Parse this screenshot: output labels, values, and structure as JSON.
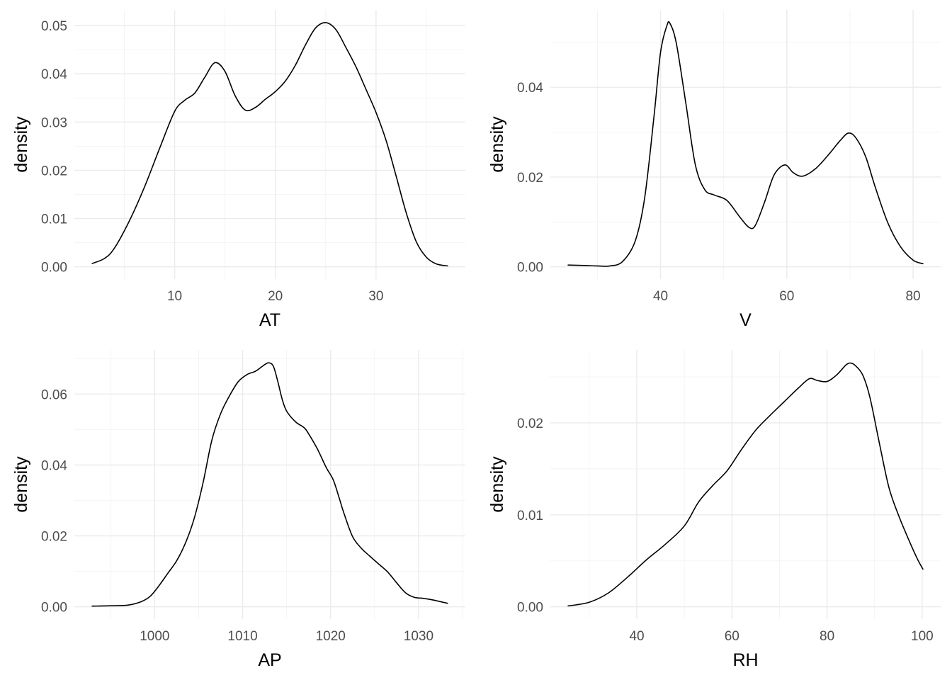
{
  "chart_data": [
    {
      "type": "line",
      "subtype": "density",
      "title": "",
      "xlabel": "AT",
      "ylabel": "density",
      "xlim": [
        1.81,
        37.11
      ],
      "ylim": [
        0,
        0.0507
      ],
      "xticks": [
        10,
        20,
        30
      ],
      "xtick_labels": [
        "10",
        "20",
        "30"
      ],
      "yticks": [
        0,
        0.01,
        0.02,
        0.03,
        0.04,
        0.05
      ],
      "ytick_labels": [
        "0.00",
        "0.01",
        "0.02",
        "0.03",
        "0.04",
        "0.05"
      ],
      "grid": true,
      "series": [
        {
          "x": [
            1.81,
            3.0,
            4.0,
            5.5,
            7.0,
            8.5,
            10.0,
            11.0,
            12.0,
            13.0,
            14.0,
            15.0,
            16.0,
            17.0,
            18.0,
            19.0,
            20.0,
            21.0,
            22.0,
            23.0,
            24.0,
            25.0,
            26.0,
            27.0,
            28.0,
            29.0,
            30.0,
            31.0,
            32.0,
            33.0,
            34.0,
            35.0,
            36.0,
            37.11
          ],
          "y": [
            0.0007,
            0.0017,
            0.0038,
            0.0095,
            0.0165,
            0.0245,
            0.0322,
            0.0345,
            0.036,
            0.0393,
            0.0423,
            0.0405,
            0.0355,
            0.0325,
            0.033,
            0.0347,
            0.0363,
            0.0385,
            0.0418,
            0.046,
            0.0495,
            0.0506,
            0.0492,
            0.0455,
            0.0415,
            0.0368,
            0.032,
            0.0262,
            0.0188,
            0.0112,
            0.0052,
            0.002,
            0.0006,
            0.0002
          ]
        }
      ]
    },
    {
      "type": "line",
      "subtype": "density",
      "title": "",
      "xlabel": "V",
      "ylabel": "density",
      "xlim": [
        25.36,
        81.56
      ],
      "ylim": [
        0,
        0.0545
      ],
      "xticks": [
        40,
        60,
        80
      ],
      "xtick_labels": [
        "40",
        "60",
        "80"
      ],
      "yticks": [
        0,
        0.02,
        0.04
      ],
      "ytick_labels": [
        "0.00",
        "0.02",
        "0.04"
      ],
      "grid": true,
      "series": [
        {
          "x": [
            25.36,
            28.0,
            30.0,
            32.0,
            34.0,
            36.0,
            37.5,
            39.0,
            40.0,
            41.0,
            41.5,
            42.5,
            44.0,
            45.5,
            47.0,
            48.5,
            50.5,
            52.5,
            54.0,
            55.0,
            56.5,
            58.0,
            59.7,
            61.0,
            62.5,
            64.5,
            66.5,
            68.5,
            69.8,
            71.0,
            72.5,
            74.0,
            76.0,
            78.0,
            80.0,
            81.56
          ],
          "y": [
            0.0004,
            0.0003,
            0.0002,
            0.0002,
            0.0012,
            0.0058,
            0.0155,
            0.034,
            0.0478,
            0.0537,
            0.0542,
            0.0498,
            0.0365,
            0.0228,
            0.0172,
            0.016,
            0.0148,
            0.0112,
            0.0088,
            0.0092,
            0.0145,
            0.0205,
            0.0227,
            0.021,
            0.0202,
            0.0218,
            0.0248,
            0.0282,
            0.0298,
            0.0286,
            0.0245,
            0.0178,
            0.0098,
            0.0045,
            0.0015,
            0.0007
          ]
        }
      ]
    },
    {
      "type": "line",
      "subtype": "density",
      "title": "",
      "xlabel": "AP",
      "ylabel": "density",
      "xlim": [
        992.89,
        1033.3
      ],
      "ylim": [
        0,
        0.069
      ],
      "xticks": [
        1000,
        1010,
        1020,
        1030
      ],
      "xtick_labels": [
        "1000",
        "1010",
        "1020",
        "1030"
      ],
      "yticks": [
        0,
        0.02,
        0.04,
        0.06
      ],
      "ytick_labels": [
        "0.00",
        "0.02",
        "0.04",
        "0.06"
      ],
      "grid": true,
      "series": [
        {
          "x": [
            992.89,
            995.0,
            997.0,
            998.5,
            999.5,
            1000.5,
            1001.5,
            1002.5,
            1003.5,
            1004.5,
            1005.5,
            1006.5,
            1007.5,
            1008.5,
            1009.5,
            1010.5,
            1011.5,
            1012.5,
            1013.0,
            1013.5,
            1014.0,
            1014.5,
            1015.0,
            1016.0,
            1017.0,
            1017.5,
            1018.5,
            1019.5,
            1020.3,
            1021.0,
            1021.5,
            1022.5,
            1023.5,
            1024.5,
            1025.5,
            1026.5,
            1027.5,
            1028.5,
            1029.5,
            1030.5,
            1031.5,
            1033.3
          ],
          "y": [
            0.0002,
            0.0003,
            0.0005,
            0.0015,
            0.003,
            0.006,
            0.0095,
            0.013,
            0.018,
            0.025,
            0.035,
            0.047,
            0.0545,
            0.0595,
            0.0635,
            0.0655,
            0.0665,
            0.0683,
            0.0688,
            0.0678,
            0.0635,
            0.0585,
            0.0552,
            0.0522,
            0.0505,
            0.0488,
            0.0445,
            0.0393,
            0.0358,
            0.0305,
            0.0265,
            0.0198,
            0.0165,
            0.0142,
            0.012,
            0.0098,
            0.0068,
            0.004,
            0.0027,
            0.0024,
            0.002,
            0.001
          ]
        }
      ]
    },
    {
      "type": "line",
      "subtype": "density",
      "title": "",
      "xlabel": "RH",
      "ylabel": "density",
      "xlim": [
        25.56,
        100.16
      ],
      "ylim": [
        0,
        0.0266
      ],
      "xticks": [
        40,
        60,
        80,
        100
      ],
      "xtick_labels": [
        "40",
        "60",
        "80",
        "100"
      ],
      "yticks": [
        0,
        0.01,
        0.02
      ],
      "ytick_labels": [
        "0.00",
        "0.01",
        "0.02"
      ],
      "grid": true,
      "series": [
        {
          "x": [
            25.56,
            30.0,
            34.0,
            38.0,
            42.0,
            46.0,
            50.0,
            53.0,
            56.0,
            59.0,
            62.0,
            65.0,
            68.0,
            71.0,
            74.0,
            76.3,
            78.0,
            80.0,
            82.0,
            84.0,
            85.0,
            86.0,
            87.5,
            89.0,
            91.0,
            93.0,
            95.0,
            97.0,
            99.0,
            100.16
          ],
          "y": [
            0.0001,
            0.0005,
            0.0015,
            0.0032,
            0.0051,
            0.0068,
            0.0088,
            0.0114,
            0.0132,
            0.0148,
            0.0171,
            0.0192,
            0.0208,
            0.0223,
            0.0238,
            0.0248,
            0.0246,
            0.0245,
            0.0252,
            0.0263,
            0.0265,
            0.0262,
            0.0252,
            0.0228,
            0.0178,
            0.013,
            0.01,
            0.0075,
            0.0052,
            0.0041
          ]
        }
      ]
    }
  ]
}
